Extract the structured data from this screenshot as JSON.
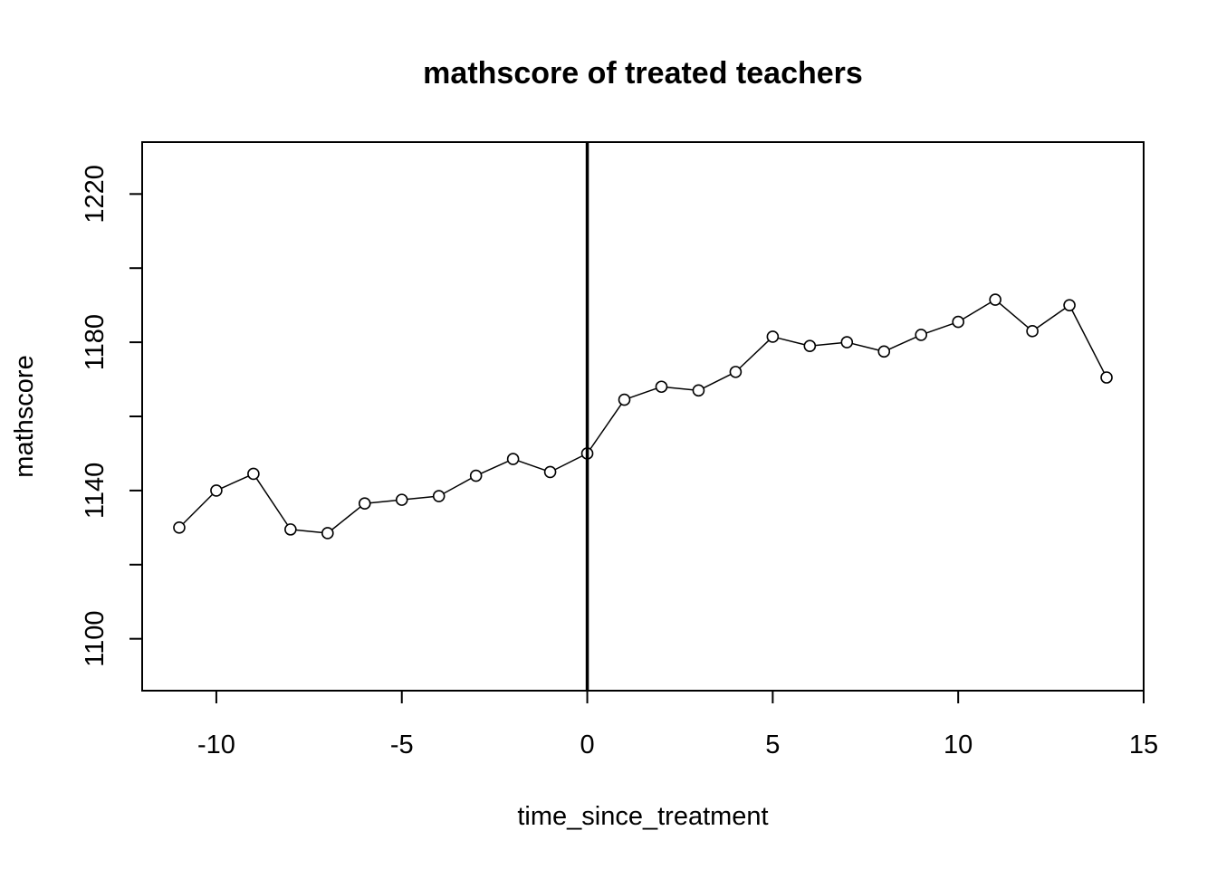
{
  "chart_data": {
    "type": "line",
    "title": "mathscore of treated teachers",
    "xlabel": "time_since_treatment",
    "ylabel": "mathscore",
    "xlim": [
      -12,
      15
    ],
    "ylim": [
      1086,
      1234
    ],
    "x_ticks": [
      -10,
      -5,
      0,
      5,
      10,
      15
    ],
    "x_tick_labels": [
      "-10",
      "-5",
      "0",
      "5",
      "10",
      "15"
    ],
    "y_ticks": [
      1100,
      1120,
      1140,
      1160,
      1180,
      1200,
      1220
    ],
    "y_tick_labels": [
      "1100",
      "",
      "1140",
      "",
      "1180",
      "",
      "1220"
    ],
    "grid": false,
    "legend": "none",
    "vline_x": 0,
    "series": [
      {
        "x": [
          -11,
          -10,
          -9,
          -8,
          -7,
          -6,
          -5,
          -4,
          -3,
          -2,
          -1,
          0,
          1,
          2,
          3,
          4,
          5,
          6,
          7,
          8,
          9,
          10,
          11,
          12,
          13,
          14
        ],
        "values": [
          1130,
          1140,
          1144.5,
          1129.5,
          1128.5,
          1136.5,
          1137.5,
          1138.5,
          1144,
          1148.5,
          1145,
          1150,
          1164.5,
          1168,
          1167,
          1172,
          1181.5,
          1179,
          1180,
          1177.5,
          1182,
          1185.5,
          1191.5,
          1183,
          1190,
          1170.5
        ],
        "color": "#000000",
        "marker": "open-circle"
      }
    ]
  }
}
